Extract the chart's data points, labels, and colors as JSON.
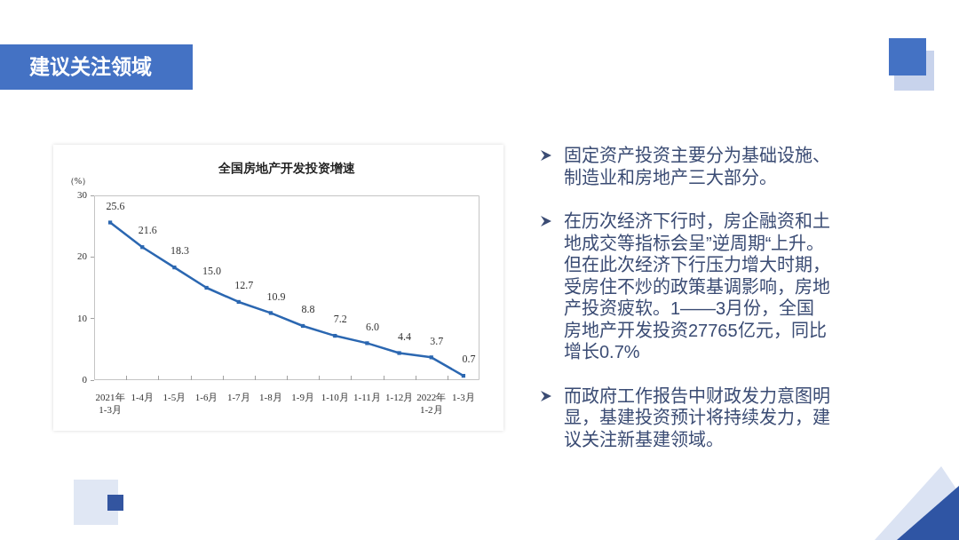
{
  "chart_data": [
    {
      "type": "other",
      "title": "建议关注领域"
    },
    {
      "type": "line",
      "title": "全国房地产开发投资增速",
      "ylabel": "（%）",
      "categories": [
        "2021年\n1-3月",
        "1-4月",
        "1-5月",
        "1-6月",
        "1-7月",
        "1-8月",
        "1-9月",
        "1-10月",
        "1-11月",
        "1-12月",
        "2022年\n1-2月",
        "1-3月"
      ],
      "values": [
        25.6,
        21.6,
        18.3,
        15.0,
        12.7,
        10.9,
        8.8,
        7.2,
        6.0,
        4.4,
        3.7,
        0.7
      ],
      "value_labels": [
        "25.6",
        "21.6",
        "18.3",
        "15.0",
        "12.7",
        "10.9",
        "8.8",
        "7.2",
        "6.0",
        "4.4",
        "3.7",
        "0.7"
      ],
      "color": "#2b67b1",
      "ylim": [
        0,
        30
      ],
      "yticks": [
        0,
        10,
        20,
        30
      ],
      "marker": "square",
      "line_style": "solid"
    },
    {
      "type": "other",
      "annotations": [
        "固定资产投资主要分为基础设施、制造业和房地产三大部分。",
        "在历次经济下行时，房企融资和土地成交等指标会呈”逆周期“上升。但在此次经济下行压力增大时期，受房住不炒的政策基调影响，房地产投资疲软。1——3月份，全国房地产开发投资27765亿元，同比增长0.7%",
        "而政府工作报告中财政发力意图明显，基建投资预计将持续发力，建议关注新基建领域。"
      ]
    }
  ]
}
